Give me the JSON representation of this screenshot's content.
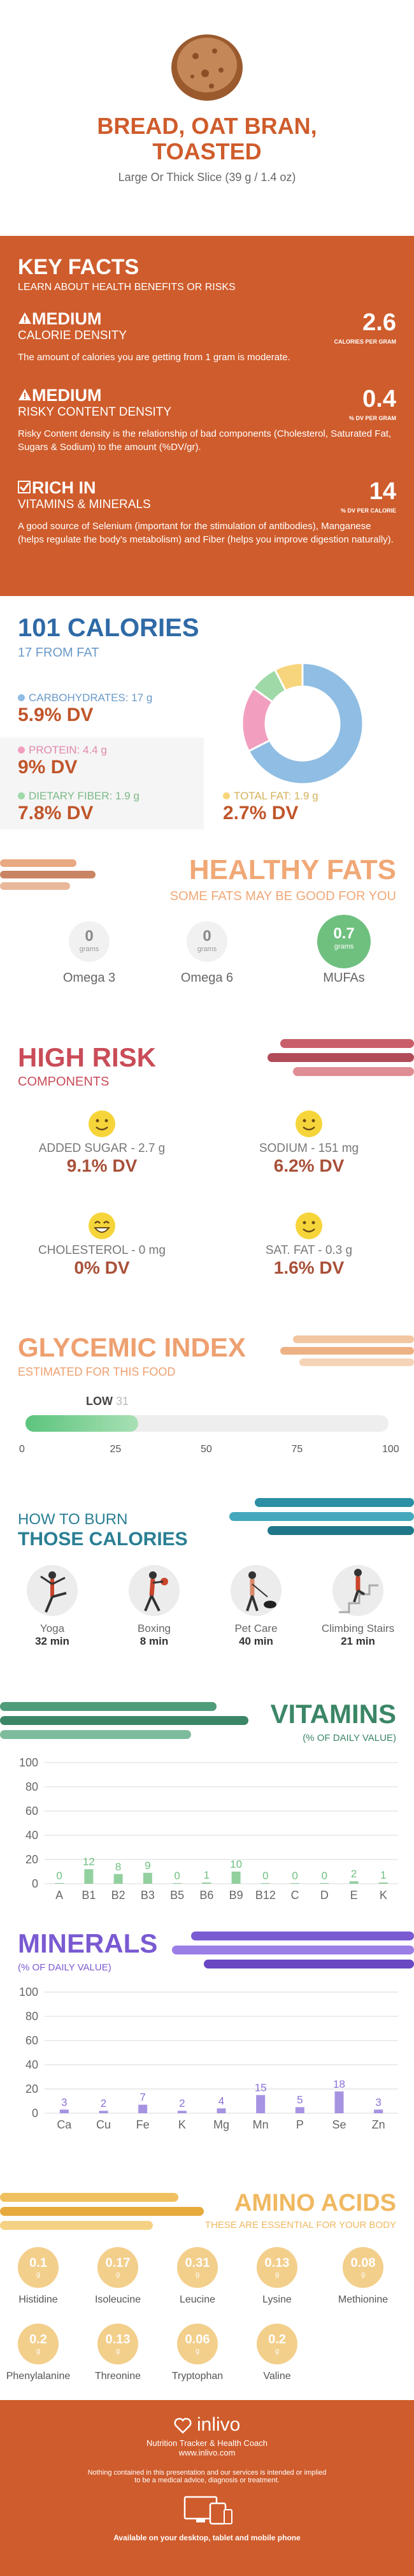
{
  "header": {
    "title_line1": "BREAD, OAT BRAN,",
    "title_line2": "TOASTED",
    "serving": "Large Or Thick Slice (39 g / 1.4 oz)"
  },
  "key_facts": {
    "title": "KEY FACTS",
    "subtitle": "LEARN ABOUT HEALTH BENEFITS OR RISKS",
    "facts": [
      {
        "level": "MEDIUM",
        "name": "CALORIE DENSITY",
        "value": "2.6",
        "unit": "CALORIES PER GRAM",
        "desc": "The amount of calories you are getting from 1 gram is moderate."
      },
      {
        "level": "MEDIUM",
        "name": "RISKY CONTENT DENSITY",
        "value": "0.4",
        "unit": "% DV PER GRAM",
        "desc": "Risky Content density is the relationship of bad components (Cholesterol, Saturated Fat, Sugars & Sodium) to the amount (%DV/gr)."
      },
      {
        "level": "RICH IN",
        "name": "VITAMINS & MINERALS",
        "value": "14",
        "unit": "% DV PER CALORIE",
        "desc": "A good source of Selenium (important for the stimulation of antibodies), Manganese (helps regulate the body's metabolism) and Fiber (helps you improve digestion naturally)."
      }
    ]
  },
  "calories": {
    "title": "101 CALORIES",
    "from_fat": "17 FROM FAT",
    "macros": [
      {
        "label": "CARBOHYDRATES: 17 g",
        "dv": "5.9% DV",
        "color": "#8fbde3"
      },
      {
        "label": "PROTEIN: 4.4 g",
        "dv": "9% DV",
        "color": "#f29fbf"
      },
      {
        "label": "DIETARY FIBER: 1.9 g",
        "dv": "7.8% DV",
        "color": "#9fd9a8"
      },
      {
        "label": "TOTAL FAT: 1.9 g",
        "dv": "2.7% DV",
        "color": "#f6d57c"
      }
    ]
  },
  "chart_data": {
    "type": "pie",
    "categories": [
      "CARBOHYDRATES",
      "PROTEIN",
      "DIETARY FIBER",
      "TOTAL FAT"
    ],
    "values": [
      17,
      4.4,
      1.9,
      1.9
    ],
    "colors": [
      "#8fbde3",
      "#f29fbf",
      "#9fd9a8",
      "#f6d57c"
    ]
  },
  "healthy_fats": {
    "title": "HEALTHY FATS",
    "subtitle": "SOME FATS MAY BE GOOD FOR YOU",
    "items": [
      {
        "value": "0",
        "unit": "grams",
        "label": "Omega 3"
      },
      {
        "value": "0",
        "unit": "grams",
        "label": "Omega 6"
      },
      {
        "value": "0.7",
        "unit": "grams",
        "label": "MUFAs"
      }
    ]
  },
  "risk": {
    "title": "HIGH RISK",
    "subtitle": "COMPONENTS",
    "items": [
      {
        "label": "ADDED SUGAR - 2.7 g",
        "dv": "9.1% DV"
      },
      {
        "label": "SODIUM - 151 mg",
        "dv": "6.2% DV"
      },
      {
        "label": "CHOLESTEROL - 0 mg",
        "dv": "0% DV"
      },
      {
        "label": "SAT. FAT - 0.3 g",
        "dv": "1.6% DV"
      }
    ]
  },
  "glycemic": {
    "title": "GLYCEMIC INDEX",
    "subtitle": "ESTIMATED FOR THIS FOOD",
    "level": "LOW",
    "value": 31,
    "ticks": [
      "0",
      "25",
      "50",
      "75",
      "100"
    ]
  },
  "burn": {
    "title1": "HOW TO BURN",
    "title2": "THOSE CALORIES",
    "activities": [
      {
        "name": "Yoga",
        "time": "32 min"
      },
      {
        "name": "Boxing",
        "time": "8 min"
      },
      {
        "name": "Pet Care",
        "time": "40 min"
      },
      {
        "name": "Climbing Stairs",
        "time": "21 min"
      }
    ]
  },
  "vitamins": {
    "title": "VITAMINS",
    "subtitle": "(% OF DAILY VALUE)",
    "yticks": [
      "0",
      "20",
      "40",
      "60",
      "80",
      "100"
    ],
    "labels": [
      "A",
      "B1",
      "B2",
      "B3",
      "B5",
      "B6",
      "B9",
      "B12",
      "C",
      "D",
      "E",
      "K"
    ],
    "values": [
      0,
      12,
      8,
      9,
      0,
      1,
      10,
      0,
      0,
      0,
      2,
      1
    ],
    "value_labels": [
      "0",
      "12",
      "8",
      "9",
      "0",
      "1",
      "10",
      "0",
      "0",
      "0",
      "2",
      "1"
    ],
    "color": "#6fc07f"
  },
  "minerals": {
    "title": "MINERALS",
    "subtitle": "(% OF DAILY VALUE)",
    "yticks": [
      "0",
      "20",
      "40",
      "60",
      "80",
      "100"
    ],
    "labels": [
      "Ca",
      "Cu",
      "Fe",
      "K",
      "Mg",
      "Mn",
      "P",
      "Se",
      "Zn"
    ],
    "values": [
      3,
      2,
      7,
      2,
      4,
      15,
      5,
      18,
      3
    ],
    "value_labels": [
      "3",
      "2",
      "7",
      "2",
      "4",
      "15",
      "5",
      "18",
      "3"
    ],
    "color": "#8a6fd8"
  },
  "amino": {
    "title": "AMINO ACIDS",
    "subtitle": "THESE ARE ESSENTIAL FOR YOUR BODY",
    "row1": [
      {
        "value": "0.1",
        "unit": "g",
        "label": "Histidine"
      },
      {
        "value": "0.17",
        "unit": "g",
        "label": "Isoleucine"
      },
      {
        "value": "0.31",
        "unit": "g",
        "label": "Leucine"
      },
      {
        "value": "0.13",
        "unit": "g",
        "label": "Lysine"
      },
      {
        "value": "0.08",
        "unit": "g",
        "label": "Methionine"
      }
    ],
    "row2": [
      {
        "value": "0.2",
        "unit": "g",
        "label": "Phenylalanine"
      },
      {
        "value": "0.13",
        "unit": "g",
        "label": "Threonine"
      },
      {
        "value": "0.06",
        "unit": "g",
        "label": "Tryptophan"
      },
      {
        "value": "0.2",
        "unit": "g",
        "label": "Valine"
      }
    ]
  },
  "footer": {
    "brand": "inlivo",
    "tagline": "Nutrition Tracker & Health Coach",
    "url": "www.inlivo.com",
    "disclaimer1": "Nothing contained in this presentation and our services is intended or implied",
    "disclaimer2": "to be a medical advice, diagnosis or treatment.",
    "available": "Available on your desktop, tablet and mobile phone"
  }
}
